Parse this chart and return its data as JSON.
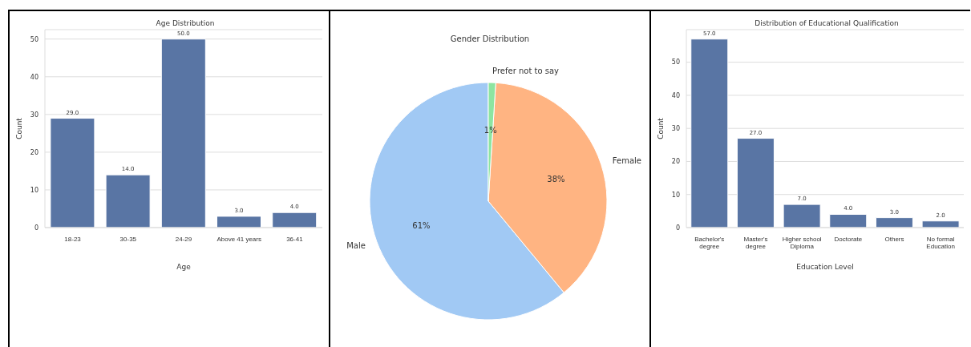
{
  "chart_data": [
    {
      "type": "bar",
      "title": "Age Distribution",
      "xlabel": "Age",
      "ylabel": "Count",
      "categories": [
        "18-23",
        "30-35",
        "24-29",
        "Above 41 years",
        "36-41"
      ],
      "values": [
        29,
        14,
        50,
        3,
        4
      ],
      "value_labels": [
        "29.0",
        "14.0",
        "50.0",
        "3.0",
        "4.0"
      ],
      "color": "#5975a4",
      "ylim": [
        0,
        52.5
      ],
      "yticks": [
        0,
        10,
        20,
        30,
        40,
        50
      ],
      "grid": "y",
      "legend": false
    },
    {
      "type": "pie",
      "title": "Gender Distribution",
      "categories": [
        "Male",
        "Female",
        "Prefer not to say"
      ],
      "values": [
        61,
        38,
        1
      ],
      "value_labels": [
        "61%",
        "38%",
        "1%"
      ],
      "colors": [
        "#a1c9f4",
        "#ffb482",
        "#8de5a1"
      ],
      "legend": false
    },
    {
      "type": "bar",
      "title": "Distribution of Educational Qualification",
      "xlabel": "Education Level",
      "ylabel": "Count",
      "categories": [
        "Bachelor's degree",
        "Master's degree",
        "Higher school Diploma",
        "Doctorate",
        "Others",
        "No formal Education"
      ],
      "values": [
        57,
        27,
        7,
        4,
        3,
        2
      ],
      "value_labels": [
        "57.0",
        "27.0",
        "7.0",
        "4.0",
        "3.0",
        "2.0"
      ],
      "color": "#5975a4",
      "ylim": [
        0,
        59.85
      ],
      "yticks": [
        0,
        10,
        20,
        30,
        40,
        50
      ],
      "grid": "y",
      "legend": false
    }
  ]
}
